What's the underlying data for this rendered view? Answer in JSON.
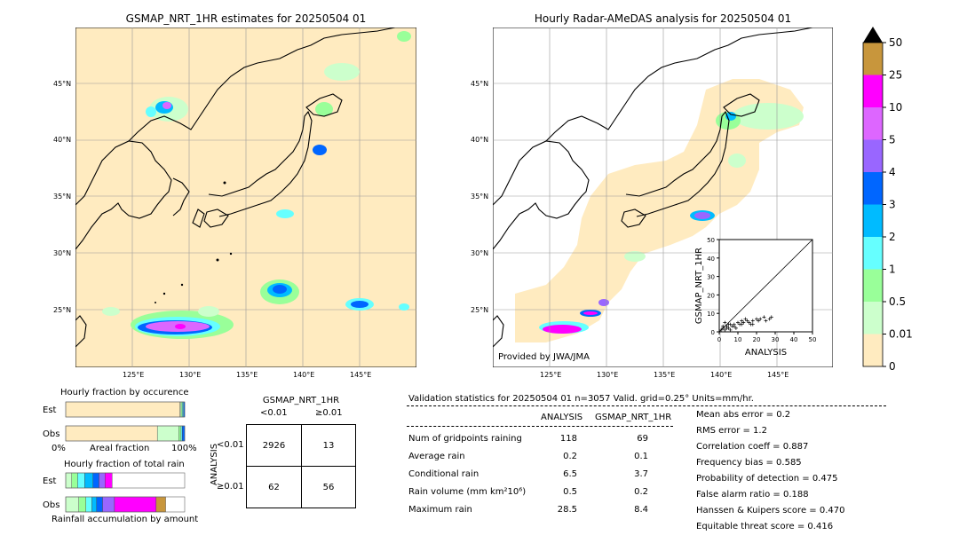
{
  "left_map": {
    "title": "GSMAP_NRT_1HR estimates for 20250504 01",
    "lat_labels": [
      "45°N",
      "40°N",
      "35°N",
      "30°N",
      "25°N"
    ],
    "lon_labels": [
      "125°E",
      "130°E",
      "135°E",
      "140°E",
      "145°E"
    ]
  },
  "right_map": {
    "title": "Hourly Radar-AMeDAS analysis for 20250504 01",
    "lat_labels": [
      "45°N",
      "40°N",
      "35°N",
      "30°N",
      "25°N"
    ],
    "lon_labels": [
      "125°E",
      "130°E",
      "135°E",
      "140°E",
      "145°E"
    ],
    "credit": "Provided by JWA/JMA"
  },
  "colorbar": {
    "labels": [
      "50",
      "25",
      "10",
      "5",
      "4",
      "3",
      "2",
      "1",
      "0.5",
      "0.01",
      "0"
    ],
    "colors": [
      "#c8963c",
      "#ff00ff",
      "#dd66ff",
      "#9966ff",
      "#0066ff",
      "#00bbff",
      "#66ffff",
      "#99ff99",
      "#ccffcc",
      "#ffebc0"
    ]
  },
  "chart_data": [
    {
      "type": "scatter",
      "xlabel": "ANALYSIS",
      "ylabel": "GSMAP_NRT_1HR",
      "xlim": [
        0,
        50
      ],
      "ylim": [
        0,
        50
      ],
      "x_ticks": [
        "0",
        "10",
        "20",
        "30",
        "40",
        "50"
      ],
      "y_ticks": [
        "0",
        "10",
        "20",
        "30",
        "40",
        "50"
      ],
      "points": [
        [
          1,
          1
        ],
        [
          2,
          2
        ],
        [
          3,
          1
        ],
        [
          4,
          3
        ],
        [
          5,
          2
        ],
        [
          6,
          1
        ],
        [
          7,
          3
        ],
        [
          8,
          4
        ],
        [
          9,
          2
        ],
        [
          10,
          5
        ],
        [
          11,
          4
        ],
        [
          12,
          6
        ],
        [
          13,
          5
        ],
        [
          14,
          7
        ],
        [
          15,
          6
        ],
        [
          16,
          5
        ],
        [
          17,
          4
        ],
        [
          18,
          6
        ],
        [
          20,
          7
        ],
        [
          21,
          6
        ],
        [
          22,
          7
        ],
        [
          24,
          8
        ],
        [
          25,
          6
        ],
        [
          27,
          7
        ],
        [
          28,
          8
        ],
        [
          3,
          5
        ],
        [
          5,
          4
        ],
        [
          8,
          3
        ],
        [
          12,
          4
        ],
        [
          18,
          4
        ],
        [
          2,
          3
        ],
        [
          4,
          2
        ],
        [
          6,
          4
        ]
      ]
    },
    {
      "type": "bar",
      "title": "Hourly fraction by occurence",
      "categories": [
        "Est",
        "Obs"
      ],
      "xlabel": "Areal fraction",
      "x_ticks": [
        "0%",
        "100%"
      ],
      "series": [
        {
          "values": [
            0.96,
            0.77
          ]
        },
        {
          "values": [
            0.01,
            0.18
          ]
        },
        {
          "values": [
            0.01,
            0.02
          ]
        },
        {
          "values": [
            0.01,
            0.01
          ]
        },
        {
          "values": [
            0.01,
            0.02
          ]
        }
      ],
      "segment_colors": [
        "#ffebc0",
        "#ccffcc",
        "#99ff99",
        "#66ffff",
        "#0066ff"
      ]
    },
    {
      "type": "bar",
      "title": "Hourly fraction of total rain",
      "categories": [
        "Est",
        "Obs"
      ],
      "xlabel": "Rainfall accumulation by amount",
      "series": [
        {
          "values": [
            0.05,
            0.11
          ]
        },
        {
          "values": [
            0.05,
            0.06
          ]
        },
        {
          "values": [
            0.06,
            0.05
          ]
        },
        {
          "values": [
            0.07,
            0.04
          ]
        },
        {
          "values": [
            0.05,
            0.05
          ]
        },
        {
          "values": [
            0.05,
            0.1
          ]
        },
        {
          "values": [
            0.06,
            0.35
          ]
        },
        {
          "values": [
            0,
            0.08
          ]
        }
      ],
      "segment_colors": [
        "#ccffcc",
        "#99ff99",
        "#66ffff",
        "#00bbff",
        "#0066ff",
        "#9966ff",
        "#ff00ff",
        "#c8963c"
      ]
    },
    {
      "type": "table",
      "title": "GSMAP_NRT_1HR",
      "col_headers": [
        "<0.01",
        "≥0.01"
      ],
      "row_axis_label": "ANALYSIS",
      "row_headers": [
        "<0.01",
        "≥0.01"
      ],
      "cells": [
        [
          "2926",
          "13"
        ],
        [
          "62",
          "56"
        ]
      ]
    }
  ],
  "validation": {
    "header": "Validation statistics for 20250504 01  n=3057 Valid. grid=0.25° Units=mm/hr.",
    "col_analysis": "ANALYSIS",
    "col_gsmap": "GSMAP_NRT_1HR",
    "rows": [
      {
        "label": "Num of gridpoints raining",
        "analysis": "118",
        "gsmap": "69"
      },
      {
        "label": "Average rain",
        "analysis": "0.2",
        "gsmap": "0.1"
      },
      {
        "label": "Conditional rain",
        "analysis": "6.5",
        "gsmap": "3.7"
      },
      {
        "label": "Rain volume (mm km²10⁶)",
        "analysis": "0.5",
        "gsmap": "0.2"
      },
      {
        "label": "Maximum rain",
        "analysis": "28.5",
        "gsmap": "8.4"
      }
    ],
    "scores": [
      "Mean abs error =    0.2",
      "RMS error =    1.2",
      "Correlation coeff =  0.887",
      "Frequency bias =  0.585",
      "Probability of detection =  0.475",
      "False alarm ratio =  0.188",
      "Hanssen & Kuipers score =  0.470",
      "Equitable threat score =  0.416"
    ]
  }
}
